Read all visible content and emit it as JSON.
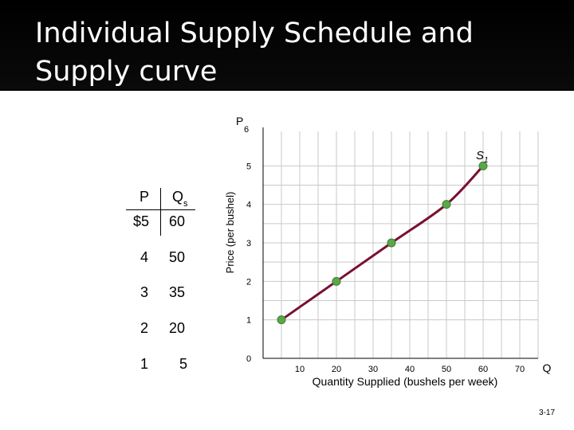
{
  "slide": {
    "title": "Individual Supply Schedule and Supply curve",
    "page_number": "3-17"
  },
  "schedule": {
    "headers": {
      "price": "P",
      "quantity": "Q",
      "quantity_sub": "s"
    },
    "rows": [
      {
        "price": "$5",
        "quantity": "60"
      },
      {
        "price": "4",
        "quantity": "50"
      },
      {
        "price": "3",
        "quantity": "35"
      },
      {
        "price": "2",
        "quantity": "20"
      },
      {
        "price": "1",
        "quantity": "5"
      }
    ]
  },
  "chart_data": {
    "type": "line",
    "ylabel": "Price (per bushel)",
    "xlabel": "Quantity Supplied (bushels per week)",
    "y_axis_letter": "P",
    "x_axis_letter": "Q",
    "curve_label": "S",
    "curve_label_sub": "1",
    "x_ticks": [
      "10",
      "20",
      "30",
      "40",
      "50",
      "60",
      "70"
    ],
    "y_ticks": [
      "0",
      "1",
      "2",
      "3",
      "4",
      "5",
      "6"
    ],
    "xlim": [
      0,
      75
    ],
    "ylim": [
      0,
      6
    ],
    "grid": true,
    "series": [
      {
        "name": "S1",
        "x": [
          5,
          20,
          35,
          50,
          60
        ],
        "y": [
          1,
          2,
          3,
          4,
          5
        ]
      }
    ],
    "colors": {
      "line": "#7a1030",
      "point": "#5aa74a",
      "point_stroke": "#3f7d33",
      "grid": "#c9c9c9"
    }
  }
}
